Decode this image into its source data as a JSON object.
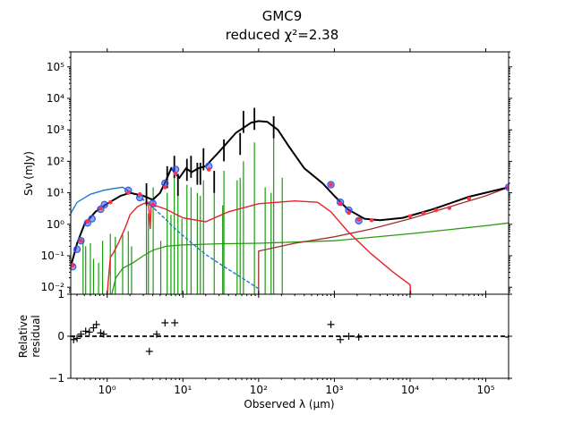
{
  "chart_data": {
    "type": "line",
    "title": "GMC9",
    "subtitle": "reduced χ²=2.38",
    "colors": {
      "total": "#000000",
      "stellar_unattenuated": "#1f77d4",
      "stellar_attenuated": "#e8202a",
      "nebular": "#1a9a10",
      "dust": "#2a9a10",
      "radio": "#a03028",
      "observed_marker": "#3355ee",
      "model_marker": "#ff3344"
    },
    "x_axis": {
      "label": "Observed λ (μm)",
      "scale": "log",
      "range": [
        0.33,
        200000
      ],
      "ticks": [
        {
          "value": 1,
          "label": "10⁰"
        },
        {
          "value": 10,
          "label": "10¹"
        },
        {
          "value": 100,
          "label": "10²"
        },
        {
          "value": 1000,
          "label": "10³"
        },
        {
          "value": 10000,
          "label": "10⁴"
        },
        {
          "value": 100000,
          "label": "10⁵"
        }
      ]
    },
    "top_panel": {
      "ylabel": "Sν (mJy)",
      "y_scale": "log",
      "ylim": [
        0.006,
        300000
      ],
      "y_ticks": [
        {
          "value": 0.01,
          "label": "10⁻²"
        },
        {
          "value": 0.1,
          "label": "10⁻¹"
        },
        {
          "value": 1,
          "label": "10⁰"
        },
        {
          "value": 10,
          "label": "10¹"
        },
        {
          "value": 100,
          "label": "10²"
        },
        {
          "value": 1000,
          "label": "10³"
        },
        {
          "value": 10000,
          "label": "10⁴"
        },
        {
          "value": 100000,
          "label": "10⁵"
        }
      ],
      "series": [
        {
          "key": "stellar_unattenuated",
          "style": "solid-then-dashed",
          "points": [
            [
              0.33,
              2.2
            ],
            [
              0.4,
              5
            ],
            [
              0.6,
              9
            ],
            [
              0.9,
              12
            ],
            [
              1.3,
              14
            ],
            [
              1.6,
              15
            ],
            [
              1.85,
              12
            ],
            [
              2.3,
              9
            ],
            [
              3,
              6
            ],
            [
              4,
              3.5
            ],
            [
              5.5,
              1.7
            ],
            [
              8,
              0.7
            ],
            [
              12,
              0.3
            ],
            [
              20,
              0.11
            ],
            [
              35,
              0.045
            ],
            [
              60,
              0.02
            ],
            [
              100,
              0.009
            ]
          ]
        },
        {
          "key": "stellar_attenuated",
          "points": [
            [
              1.0,
              0.006
            ],
            [
              1.1,
              0.09
            ],
            [
              1.2,
              0.12
            ],
            [
              1.4,
              0.25
            ],
            [
              1.7,
              0.7
            ],
            [
              2.0,
              2.0
            ],
            [
              2.5,
              3.6
            ],
            [
              3.0,
              4.5
            ],
            [
              3.5,
              5
            ],
            [
              3.7,
              0.7
            ],
            [
              3.8,
              3.5
            ],
            [
              4.5,
              3.8
            ],
            [
              6,
              3
            ],
            [
              10,
              1.6
            ],
            [
              20,
              1.2
            ],
            [
              40,
              2.5
            ],
            [
              100,
              4.5
            ],
            [
              300,
              5.5
            ],
            [
              600,
              5
            ],
            [
              900,
              2.5
            ],
            [
              1500,
              0.6
            ],
            [
              3000,
              0.12
            ],
            [
              6000,
              0.03
            ],
            [
              10000,
              0.012
            ],
            [
              10200,
              0.006
            ]
          ]
        },
        {
          "key": "dust",
          "points": [
            [
              1.15,
              0.006
            ],
            [
              1.3,
              0.02
            ],
            [
              1.6,
              0.04
            ],
            [
              2.2,
              0.06
            ],
            [
              3,
              0.1
            ],
            [
              4,
              0.15
            ],
            [
              6,
              0.2
            ],
            [
              10,
              0.22
            ],
            [
              30,
              0.24
            ],
            [
              100,
              0.25
            ],
            [
              1000,
              0.3
            ],
            [
              10000,
              0.5
            ],
            [
              100000,
              0.9
            ],
            [
              200000,
              1.1
            ]
          ]
        },
        {
          "key": "radio",
          "points": [
            [
              100,
              0.006
            ],
            [
              100,
              0.14
            ],
            [
              300,
              0.25
            ],
            [
              1000,
              0.4
            ],
            [
              3000,
              0.7
            ],
            [
              10000,
              1.5
            ],
            [
              100000,
              8
            ],
            [
              200000,
              15
            ]
          ]
        },
        {
          "key": "total",
          "points": [
            [
              0.33,
              0.045
            ],
            [
              0.4,
              0.25
            ],
            [
              0.5,
              1.0
            ],
            [
              0.7,
              2.5
            ],
            [
              1.0,
              4.5
            ],
            [
              1.5,
              8
            ],
            [
              2.0,
              10
            ],
            [
              3.0,
              8
            ],
            [
              4.0,
              6
            ],
            [
              5.0,
              10
            ],
            [
              6.0,
              25
            ],
            [
              7.0,
              60
            ],
            [
              8.0,
              40
            ],
            [
              9.0,
              30
            ],
            [
              11,
              60
            ],
            [
              13,
              45
            ],
            [
              16,
              60
            ],
            [
              20,
              70
            ],
            [
              30,
              200
            ],
            [
              50,
              800
            ],
            [
              80,
              1700
            ],
            [
              100,
              1900
            ],
            [
              130,
              1800
            ],
            [
              180,
              1000
            ],
            [
              250,
              300
            ],
            [
              400,
              60
            ],
            [
              700,
              20
            ],
            [
              1000,
              8
            ],
            [
              1500,
              3
            ],
            [
              2500,
              1.5
            ],
            [
              4000,
              1.35
            ],
            [
              8000,
              1.6
            ],
            [
              20000,
              3
            ],
            [
              60000,
              7.5
            ],
            [
              200000,
              15
            ]
          ]
        }
      ],
      "observed": [
        [
          0.35,
          0.045
        ],
        [
          0.4,
          0.16
        ],
        [
          0.45,
          0.3
        ],
        [
          0.55,
          1.1
        ],
        [
          0.63,
          1.5
        ],
        [
          0.82,
          3.0
        ],
        [
          0.92,
          4.2
        ],
        [
          1.9,
          12
        ],
        [
          2.7,
          7
        ],
        [
          4.0,
          4.6
        ],
        [
          5.8,
          20
        ],
        [
          8.0,
          55
        ],
        [
          22,
          70
        ],
        [
          900,
          18
        ],
        [
          1200,
          5
        ],
        [
          1550,
          2.8
        ],
        [
          2100,
          1.3
        ],
        [
          200000,
          15
        ]
      ],
      "model_points": [
        [
          0.35,
          0.05
        ],
        [
          0.45,
          0.3
        ],
        [
          0.55,
          1.2
        ],
        [
          0.82,
          3.2
        ],
        [
          1.1,
          5.0
        ],
        [
          1.9,
          10
        ],
        [
          2.7,
          9
        ],
        [
          4.0,
          4.3
        ],
        [
          5.8,
          15
        ],
        [
          8.0,
          40
        ],
        [
          22,
          55
        ],
        [
          900,
          18
        ],
        [
          1200,
          4.5
        ],
        [
          1550,
          2.3
        ],
        [
          2100,
          1.4
        ],
        [
          3100,
          1.35
        ],
        [
          10000,
          1.8
        ],
        [
          15000,
          2.2
        ],
        [
          22000,
          2.8
        ],
        [
          33000,
          3.3
        ],
        [
          60000,
          6.5
        ],
        [
          200000,
          15
        ]
      ],
      "nebular_lines": [
        [
          0.48,
          0.3
        ],
        [
          0.52,
          0.2
        ],
        [
          0.6,
          0.25
        ],
        [
          0.66,
          0.08
        ],
        [
          0.77,
          0.06
        ],
        [
          0.87,
          0.3
        ],
        [
          1.1,
          0.5
        ],
        [
          1.28,
          0.4
        ],
        [
          1.6,
          0.5
        ],
        [
          1.9,
          0.6
        ],
        [
          2.1,
          0.2
        ],
        [
          3.3,
          6.5
        ],
        [
          3.5,
          2.2
        ],
        [
          4.05,
          15
        ],
        [
          5.1,
          0.3
        ],
        [
          6.2,
          10
        ],
        [
          6.95,
          2
        ],
        [
          7.7,
          40
        ],
        [
          8.6,
          9
        ],
        [
          9.7,
          1.5
        ],
        [
          11.3,
          18
        ],
        [
          12.8,
          15
        ],
        [
          15.5,
          10
        ],
        [
          17,
          8
        ],
        [
          18.7,
          25
        ],
        [
          25.9,
          10
        ],
        [
          33.5,
          4
        ],
        [
          34.8,
          50
        ],
        [
          52,
          25
        ],
        [
          57,
          30
        ],
        [
          63,
          100
        ],
        [
          88,
          400
        ],
        [
          122,
          15
        ],
        [
          146,
          10
        ],
        [
          158,
          800
        ],
        [
          205,
          30
        ]
      ],
      "total_lines": [
        [
          3.3,
          20
        ],
        [
          6.2,
          70
        ],
        [
          7.7,
          150
        ],
        [
          8.6,
          40
        ],
        [
          11.3,
          120
        ],
        [
          12.8,
          150
        ],
        [
          15.5,
          90
        ],
        [
          17,
          90
        ],
        [
          18.7,
          260
        ],
        [
          25.9,
          50
        ],
        [
          34.8,
          500
        ],
        [
          57,
          800
        ],
        [
          63,
          4000
        ],
        [
          88,
          5000
        ],
        [
          158,
          2700
        ]
      ]
    },
    "bottom_panel": {
      "ylabel": [
        "Relative",
        "residual"
      ],
      "ylim": [
        -1,
        1
      ],
      "y_ticks": [
        {
          "value": -1,
          "label": "−1"
        },
        {
          "value": 0,
          "label": "0"
        },
        {
          "value": 1,
          "label": "1"
        }
      ],
      "points": [
        [
          0.36,
          -0.08
        ],
        [
          0.4,
          -0.05
        ],
        [
          0.45,
          0.05
        ],
        [
          0.52,
          0.12
        ],
        [
          0.58,
          0.1
        ],
        [
          0.66,
          0.2
        ],
        [
          0.72,
          0.28
        ],
        [
          0.82,
          0.08
        ],
        [
          0.9,
          0.05
        ],
        [
          3.6,
          -0.36
        ],
        [
          4.5,
          0.05
        ],
        [
          5.8,
          0.32
        ],
        [
          7.8,
          0.32
        ],
        [
          900,
          0.28
        ],
        [
          1200,
          -0.08
        ],
        [
          1550,
          0.0
        ],
        [
          2100,
          -0.02
        ],
        [
          200000,
          -0.02
        ]
      ]
    }
  }
}
